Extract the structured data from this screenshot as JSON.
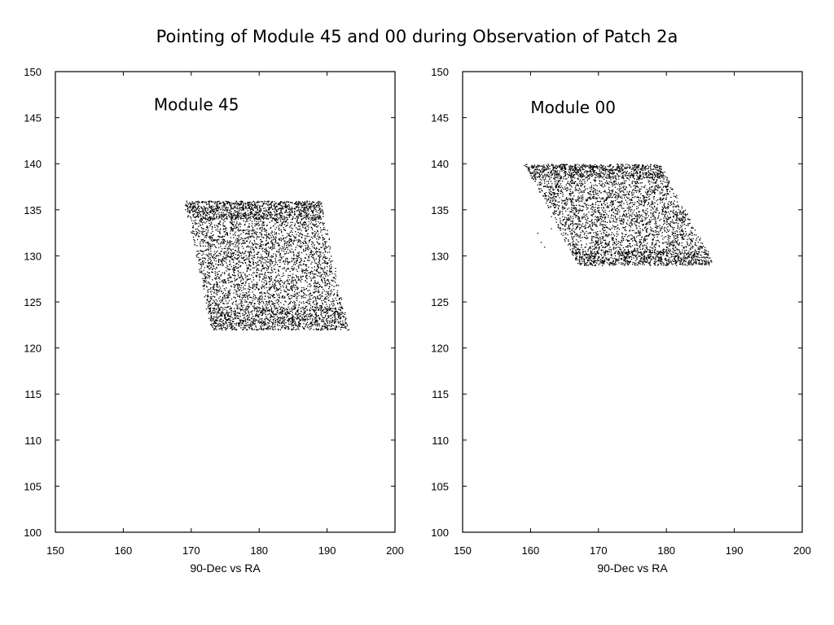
{
  "page": {
    "title": "Pointing of Module 45 and 00  during Observation of Patch 2a"
  },
  "colors": {
    "points": "#000000",
    "axes": "#000000",
    "background": "#ffffff"
  },
  "chart_data": [
    {
      "type": "scatter",
      "title": "",
      "annotation": "Module 45",
      "xlabel": "90-Dec vs RA",
      "ylabel": "",
      "xlim": [
        150,
        200
      ],
      "ylim": [
        100,
        150
      ],
      "xticks": [
        150,
        160,
        170,
        180,
        190,
        200
      ],
      "yticks": [
        100,
        105,
        110,
        115,
        120,
        125,
        130,
        135,
        140,
        145,
        150
      ],
      "grid": false,
      "region": {
        "shape": "parallelogram",
        "corners": [
          [
            169,
            136
          ],
          [
            189,
            136
          ],
          [
            193,
            122
          ],
          [
            173,
            122
          ]
        ],
        "dense_bands": [
          [
            122,
            124.5
          ],
          [
            134,
            136
          ]
        ],
        "approx_points": 5200
      }
    },
    {
      "type": "scatter",
      "title": "",
      "annotation": "Module 00",
      "xlabel": "90-Dec vs RA",
      "ylabel": "",
      "xlim": [
        150,
        200
      ],
      "ylim": [
        100,
        150
      ],
      "xticks": [
        150,
        160,
        170,
        180,
        190,
        200
      ],
      "yticks": [
        100,
        105,
        110,
        115,
        120,
        125,
        130,
        135,
        140,
        145,
        150
      ],
      "grid": false,
      "region": {
        "shape": "parallelogram",
        "corners": [
          [
            159,
            140
          ],
          [
            179,
            140
          ],
          [
            187,
            129
          ],
          [
            167,
            129
          ]
        ],
        "dense_bands": [
          [
            129,
            130.5
          ],
          [
            138.5,
            140
          ]
        ],
        "stray_points": [
          [
            161.5,
            131.5
          ],
          [
            162,
            131
          ],
          [
            161,
            132.5
          ],
          [
            163,
            133
          ]
        ],
        "approx_points": 4200
      }
    }
  ]
}
